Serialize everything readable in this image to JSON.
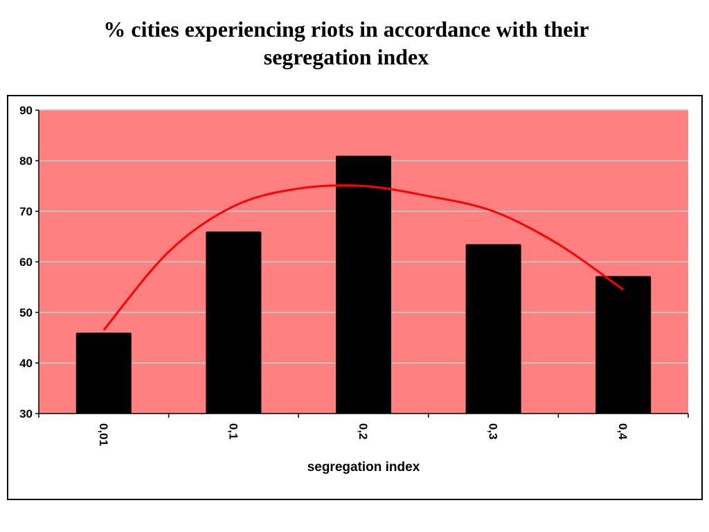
{
  "slide": {
    "title_line1": "% cities experiencing riots in accordance with their",
    "title_line2": "segregation index"
  },
  "chart_data": {
    "type": "bar",
    "categories": [
      "0,01",
      "0,1",
      "0,2",
      "0,3",
      "0,4"
    ],
    "values": [
      46,
      66,
      81,
      63.5,
      57.2
    ],
    "trendline": {
      "type": "polynomial",
      "color": "#ff0000",
      "x": [
        0,
        0.5,
        1,
        1.5,
        2,
        2.5,
        3,
        3.5,
        4
      ],
      "y": [
        46.5,
        62,
        71,
        74.5,
        75,
        73,
        70,
        63.5,
        54.5
      ]
    },
    "xlabel": "segregation index",
    "ylabel": "",
    "ylim": [
      30,
      90
    ],
    "yticks": [
      30,
      40,
      50,
      60,
      70,
      80,
      90
    ],
    "grid": true,
    "legend": "none",
    "colors": {
      "plot_background": "#ff8080",
      "bars": "#000000",
      "gridlines": "#c0c0c0",
      "trendline": "#ff0000"
    }
  }
}
